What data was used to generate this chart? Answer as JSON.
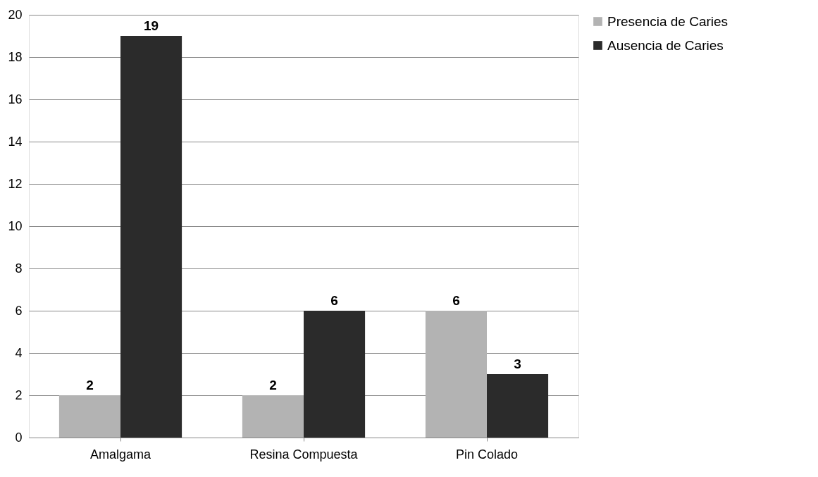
{
  "chart_data": {
    "type": "bar",
    "categories": [
      "Amalgama",
      "Resina Compuesta",
      "Pin Colado"
    ],
    "series": [
      {
        "name": "Presencia de Caries",
        "color": "#b3b3b3",
        "values": [
          2,
          2,
          6
        ]
      },
      {
        "name": "Ausencia de Caries",
        "color": "#2b2b2b",
        "values": [
          19,
          6,
          3
        ]
      }
    ],
    "ylim": [
      0,
      20
    ],
    "yticks": [
      0,
      2,
      4,
      6,
      8,
      10,
      12,
      14,
      16,
      18,
      20
    ],
    "grid": "y",
    "legend": "right",
    "data_labels": true
  }
}
